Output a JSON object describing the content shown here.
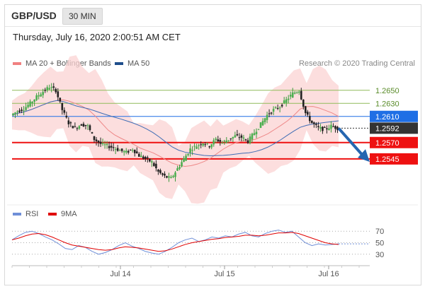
{
  "header": {
    "symbol": "GBP/USD",
    "timeframe": "30 MIN",
    "datetime": "Thursday, July 16, 2020 2:00:51 AM CET"
  },
  "legend": {
    "ma_bb_label": "MA 20 + Bollinger Bands",
    "ma_bb_color": "#f08080",
    "ma50_label": "MA 50",
    "ma50_color": "#1f4e8c",
    "research": "Research © 2020 Trading Central"
  },
  "rsi_legend": {
    "rsi_label": "RSI",
    "rsi_color": "#6f8fd8",
    "ma9_label": "9MA",
    "ma9_color": "#e00000"
  },
  "chart_data": {
    "type": "candlestick",
    "y_range": [
      1.248,
      1.268
    ],
    "x_ticks": [
      "Jul 14",
      "Jul 15",
      "Jul 16"
    ],
    "last_price": 1.2592,
    "levels": [
      {
        "value": 1.265,
        "label": "1.2650",
        "color": "#8fbc5a",
        "kind": "resistance-minor"
      },
      {
        "value": 1.263,
        "label": "1.2630",
        "color": "#8fbc5a",
        "kind": "resistance-minor"
      },
      {
        "value": 1.261,
        "label": "1.2610",
        "color": "#1f6fe5",
        "kind": "pivot"
      },
      {
        "value": 1.2592,
        "label": "1.2592",
        "color": "#333333",
        "kind": "last"
      },
      {
        "value": 1.257,
        "label": "1.2570",
        "color": "#ee1111",
        "kind": "support"
      },
      {
        "value": 1.2545,
        "label": "1.2545",
        "color": "#ee1111",
        "kind": "support"
      }
    ],
    "price_path": [
      1.2612,
      1.2618,
      1.2622,
      1.263,
      1.264,
      1.2648,
      1.2655,
      1.265,
      1.262,
      1.26,
      1.2592,
      1.2598,
      1.2595,
      1.2575,
      1.2568,
      1.2565,
      1.2562,
      1.2558,
      1.2555,
      1.256,
      1.255,
      1.2545,
      1.254,
      1.2525,
      1.2518,
      1.2515,
      1.253,
      1.2545,
      1.256,
      1.2565,
      1.257,
      1.2565,
      1.2575,
      1.257,
      1.2575,
      1.258,
      1.2578,
      1.2572,
      1.2585,
      1.2598,
      1.2612,
      1.262,
      1.2625,
      1.2635,
      1.2645,
      1.265,
      1.2615,
      1.26,
      1.2592,
      1.259,
      1.2595,
      1.2592
    ],
    "rsi": {
      "levels": [
        70,
        50,
        30
      ],
      "y_range": [
        15,
        85
      ],
      "rsi_path": [
        55,
        62,
        68,
        70,
        66,
        60,
        55,
        48,
        40,
        38,
        45,
        42,
        35,
        30,
        33,
        38,
        45,
        50,
        44,
        40,
        35,
        32,
        30,
        35,
        42,
        50,
        55,
        58,
        52,
        55,
        60,
        58,
        62,
        60,
        65,
        68,
        62,
        60,
        66,
        70,
        72,
        68,
        70,
        60,
        50,
        45,
        48,
        46,
        47,
        48
      ],
      "ma9_path": [
        55,
        58,
        62,
        65,
        66,
        64,
        60,
        55,
        50,
        46,
        44,
        42,
        40,
        38,
        37,
        38,
        41,
        43,
        42,
        41,
        39,
        37,
        35,
        36,
        39,
        43,
        47,
        50,
        52,
        54,
        56,
        57,
        59,
        60,
        61,
        63,
        63,
        62,
        63,
        65,
        67,
        67,
        68,
        66,
        62,
        58,
        54,
        50,
        48,
        47
      ]
    }
  }
}
